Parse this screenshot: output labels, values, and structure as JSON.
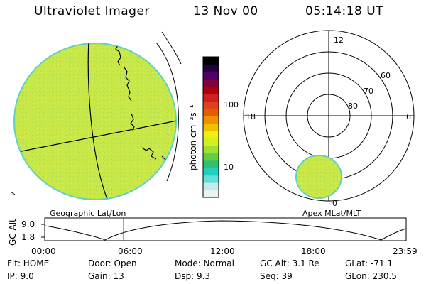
{
  "header": {
    "title": "Ultraviolet Imager",
    "date": "13 Nov 00",
    "time": "05:14:18 UT"
  },
  "colorbar": {
    "unit_label": "photon cm⁻²s⁻¹",
    "ticks": [
      "100",
      "10"
    ],
    "colors": [
      "#e8f4f4",
      "#c8e8ec",
      "#60e0d8",
      "#20d0c0",
      "#30c070",
      "#60d040",
      "#a0e030",
      "#d0f020",
      "#f0f010",
      "#f0c000",
      "#f09000",
      "#e06000",
      "#e04020",
      "#d02020",
      "#b00010",
      "#800040",
      "#500060",
      "#200040",
      "#000000"
    ]
  },
  "left_panel": {
    "caption": "Geographic Lat/Lon",
    "fill_color": "#c8e84a"
  },
  "right_panel": {
    "caption": "Apex MLat/MLT",
    "labels": {
      "mlt_12": "12",
      "mlt_18": "18",
      "mlt_6": "6",
      "mlt_0": "0",
      "lat_60": "60",
      "lat_70": "70",
      "lat_80": "80"
    }
  },
  "altitude_plot": {
    "ylabel": "GC Alt",
    "yticks": [
      "9.0",
      "1.8"
    ],
    "xticks": [
      "00:00",
      "06:00",
      "12:00",
      "18:00",
      "23:59"
    ],
    "current_time_marker": "05:14",
    "marker_color": "#c02020"
  },
  "status": {
    "flt": "Flt: HOME",
    "ip": "IP:  9.0",
    "door": "Door: Open",
    "gain": "Gain: 13",
    "mode": "Mode: Normal",
    "dsp": "Dsp:    9.3",
    "gc_alt": "GC Alt: 3.1 Re",
    "seq": "Seq: 39",
    "glat": "GLat: -71.1",
    "glon": "GLon: 230.5"
  }
}
